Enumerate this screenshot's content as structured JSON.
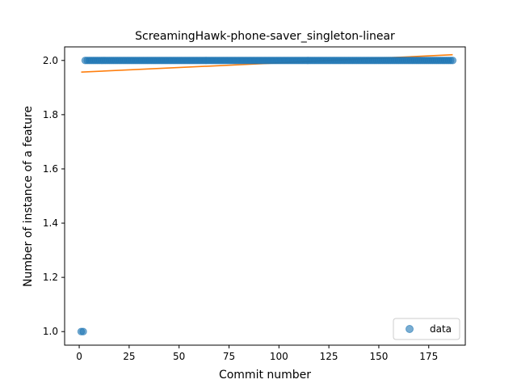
{
  "chart_data": {
    "type": "scatter",
    "title": "ScreamingHawk-phone-saver_singleton-linear",
    "xlabel": "Commit number",
    "ylabel": "Number of instance of a feature",
    "xlim": [
      -7.3,
      193.3
    ],
    "ylim": [
      0.95,
      2.05
    ],
    "xticks": [
      0,
      25,
      50,
      75,
      100,
      125,
      150,
      175
    ],
    "xtick_labels": [
      "0",
      "25",
      "50",
      "75",
      "100",
      "125",
      "150",
      "175"
    ],
    "yticks": [
      1.0,
      1.2,
      1.4,
      1.6,
      1.8,
      2.0
    ],
    "ytick_labels": [
      "1.0",
      "1.2",
      "1.4",
      "1.6",
      "1.8",
      "2.0"
    ],
    "grid": false,
    "legend": {
      "position": "lower-right",
      "entries": [
        "data"
      ]
    },
    "colors": {
      "data": "#1f77b4",
      "fit": "#ff7f0e"
    },
    "series": [
      {
        "name": "data",
        "kind": "scatter",
        "points": [
          [
            1,
            1.0
          ],
          [
            2,
            1.0
          ],
          [
            3,
            2.0
          ],
          [
            4,
            2.0
          ],
          [
            5,
            2.0
          ],
          [
            6,
            2.0
          ],
          [
            7,
            2.0
          ],
          [
            8,
            2.0
          ],
          [
            9,
            2.0
          ],
          [
            10,
            2.0
          ],
          [
            11,
            2.0
          ],
          [
            12,
            2.0
          ],
          [
            13,
            2.0
          ],
          [
            14,
            2.0
          ],
          [
            15,
            2.0
          ],
          [
            16,
            2.0
          ],
          [
            17,
            2.0
          ],
          [
            18,
            2.0
          ],
          [
            19,
            2.0
          ],
          [
            20,
            2.0
          ],
          [
            21,
            2.0
          ],
          [
            22,
            2.0
          ],
          [
            23,
            2.0
          ],
          [
            24,
            2.0
          ],
          [
            25,
            2.0
          ],
          [
            26,
            2.0
          ],
          [
            27,
            2.0
          ],
          [
            28,
            2.0
          ],
          [
            29,
            2.0
          ],
          [
            30,
            2.0
          ],
          [
            31,
            2.0
          ],
          [
            32,
            2.0
          ],
          [
            33,
            2.0
          ],
          [
            34,
            2.0
          ],
          [
            35,
            2.0
          ],
          [
            36,
            2.0
          ],
          [
            37,
            2.0
          ],
          [
            38,
            2.0
          ],
          [
            39,
            2.0
          ],
          [
            40,
            2.0
          ],
          [
            41,
            2.0
          ],
          [
            42,
            2.0
          ],
          [
            43,
            2.0
          ],
          [
            44,
            2.0
          ],
          [
            45,
            2.0
          ],
          [
            46,
            2.0
          ],
          [
            47,
            2.0
          ],
          [
            48,
            2.0
          ],
          [
            49,
            2.0
          ],
          [
            50,
            2.0
          ],
          [
            51,
            2.0
          ],
          [
            52,
            2.0
          ],
          [
            53,
            2.0
          ],
          [
            54,
            2.0
          ],
          [
            55,
            2.0
          ],
          [
            56,
            2.0
          ],
          [
            57,
            2.0
          ],
          [
            58,
            2.0
          ],
          [
            59,
            2.0
          ],
          [
            60,
            2.0
          ],
          [
            61,
            2.0
          ],
          [
            62,
            2.0
          ],
          [
            63,
            2.0
          ],
          [
            64,
            2.0
          ],
          [
            65,
            2.0
          ],
          [
            66,
            2.0
          ],
          [
            67,
            2.0
          ],
          [
            68,
            2.0
          ],
          [
            69,
            2.0
          ],
          [
            70,
            2.0
          ],
          [
            71,
            2.0
          ],
          [
            72,
            2.0
          ],
          [
            73,
            2.0
          ],
          [
            74,
            2.0
          ],
          [
            75,
            2.0
          ],
          [
            76,
            2.0
          ],
          [
            77,
            2.0
          ],
          [
            78,
            2.0
          ],
          [
            79,
            2.0
          ],
          [
            80,
            2.0
          ],
          [
            81,
            2.0
          ],
          [
            82,
            2.0
          ],
          [
            83,
            2.0
          ],
          [
            84,
            2.0
          ],
          [
            85,
            2.0
          ],
          [
            86,
            2.0
          ],
          [
            87,
            2.0
          ],
          [
            88,
            2.0
          ],
          [
            89,
            2.0
          ],
          [
            90,
            2.0
          ],
          [
            91,
            2.0
          ],
          [
            92,
            2.0
          ],
          [
            93,
            2.0
          ],
          [
            94,
            2.0
          ],
          [
            95,
            2.0
          ],
          [
            96,
            2.0
          ],
          [
            97,
            2.0
          ],
          [
            98,
            2.0
          ],
          [
            99,
            2.0
          ],
          [
            100,
            2.0
          ],
          [
            101,
            2.0
          ],
          [
            102,
            2.0
          ],
          [
            103,
            2.0
          ],
          [
            104,
            2.0
          ],
          [
            105,
            2.0
          ],
          [
            106,
            2.0
          ],
          [
            107,
            2.0
          ],
          [
            108,
            2.0
          ],
          [
            109,
            2.0
          ],
          [
            110,
            2.0
          ],
          [
            111,
            2.0
          ],
          [
            112,
            2.0
          ],
          [
            113,
            2.0
          ],
          [
            114,
            2.0
          ],
          [
            115,
            2.0
          ],
          [
            116,
            2.0
          ],
          [
            117,
            2.0
          ],
          [
            118,
            2.0
          ],
          [
            119,
            2.0
          ],
          [
            120,
            2.0
          ],
          [
            121,
            2.0
          ],
          [
            122,
            2.0
          ],
          [
            123,
            2.0
          ],
          [
            124,
            2.0
          ],
          [
            125,
            2.0
          ],
          [
            126,
            2.0
          ],
          [
            127,
            2.0
          ],
          [
            128,
            2.0
          ],
          [
            129,
            2.0
          ],
          [
            130,
            2.0
          ],
          [
            131,
            2.0
          ],
          [
            132,
            2.0
          ],
          [
            133,
            2.0
          ],
          [
            134,
            2.0
          ],
          [
            135,
            2.0
          ],
          [
            136,
            2.0
          ],
          [
            137,
            2.0
          ],
          [
            138,
            2.0
          ],
          [
            139,
            2.0
          ],
          [
            140,
            2.0
          ],
          [
            141,
            2.0
          ],
          [
            142,
            2.0
          ],
          [
            143,
            2.0
          ],
          [
            144,
            2.0
          ],
          [
            145,
            2.0
          ],
          [
            146,
            2.0
          ],
          [
            147,
            2.0
          ],
          [
            148,
            2.0
          ],
          [
            149,
            2.0
          ],
          [
            150,
            2.0
          ],
          [
            151,
            2.0
          ],
          [
            152,
            2.0
          ],
          [
            153,
            2.0
          ],
          [
            154,
            2.0
          ],
          [
            155,
            2.0
          ],
          [
            156,
            2.0
          ],
          [
            157,
            2.0
          ],
          [
            158,
            2.0
          ],
          [
            159,
            2.0
          ],
          [
            160,
            2.0
          ],
          [
            161,
            2.0
          ],
          [
            162,
            2.0
          ],
          [
            163,
            2.0
          ],
          [
            164,
            2.0
          ],
          [
            165,
            2.0
          ],
          [
            166,
            2.0
          ],
          [
            167,
            2.0
          ],
          [
            168,
            2.0
          ],
          [
            169,
            2.0
          ],
          [
            170,
            2.0
          ],
          [
            171,
            2.0
          ],
          [
            172,
            2.0
          ],
          [
            173,
            2.0
          ],
          [
            174,
            2.0
          ],
          [
            175,
            2.0
          ],
          [
            176,
            2.0
          ],
          [
            177,
            2.0
          ],
          [
            178,
            2.0
          ],
          [
            179,
            2.0
          ],
          [
            180,
            2.0
          ],
          [
            181,
            2.0
          ],
          [
            182,
            2.0
          ],
          [
            183,
            2.0
          ],
          [
            184,
            2.0
          ],
          [
            185,
            2.0
          ],
          [
            186,
            2.0
          ],
          [
            187,
            2.0
          ]
        ]
      },
      {
        "kind": "line",
        "x": [
          1,
          187
        ],
        "y": [
          1.957,
          2.021
        ]
      }
    ]
  }
}
